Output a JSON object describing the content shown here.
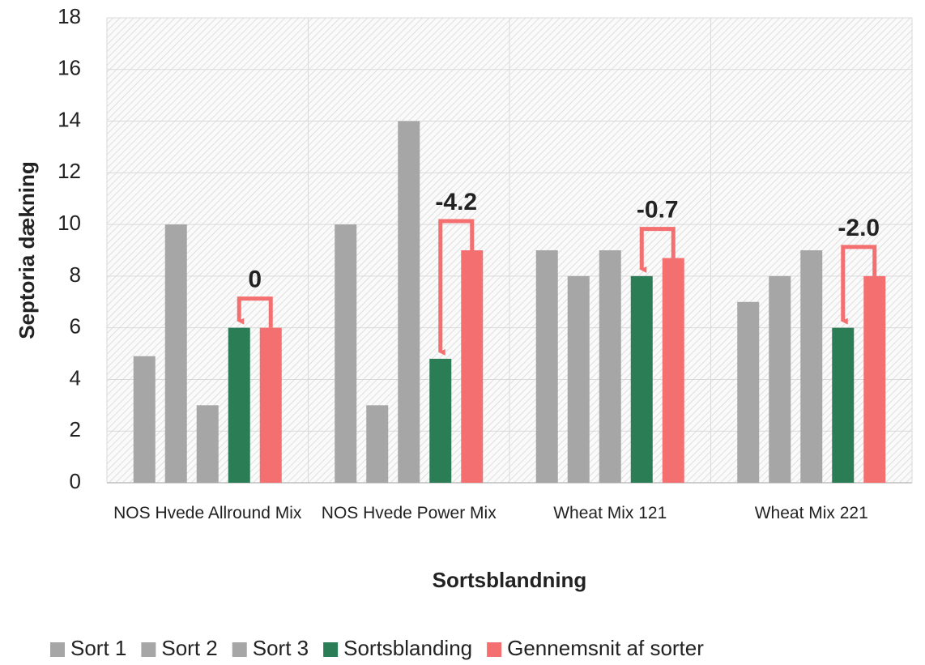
{
  "chart_data": {
    "type": "bar",
    "categories": [
      "NOS Hvede Allround Mix",
      "NOS Hvede Power Mix",
      "Wheat Mix 121",
      "Wheat Mix 221"
    ],
    "series": [
      {
        "name": "Sort 1",
        "color": "#a6a6a6",
        "values": [
          4.9,
          10,
          9,
          7
        ]
      },
      {
        "name": "Sort 2",
        "color": "#a6a6a6",
        "values": [
          10,
          3,
          8,
          8
        ]
      },
      {
        "name": "Sort 3",
        "color": "#a6a6a6",
        "values": [
          3,
          14,
          9,
          9
        ]
      },
      {
        "name": "Sortsblanding",
        "color": "#2a7d55",
        "values": [
          6,
          4.8,
          8,
          6
        ]
      },
      {
        "name": "Gennemsnit af sorter",
        "color": "#f46f6f",
        "values": [
          6,
          9,
          8.7,
          8
        ]
      }
    ],
    "annotations": [
      "0",
      "-4.2",
      "-0.7",
      "-2.0"
    ],
    "xlabel": "Sortsblandning",
    "ylabel": "Septoria dækning",
    "ylim": [
      0,
      18
    ],
    "yticks": [
      0,
      2,
      4,
      6,
      8,
      10,
      12,
      14,
      16,
      18
    ],
    "grid": true,
    "legend": "bottom"
  }
}
